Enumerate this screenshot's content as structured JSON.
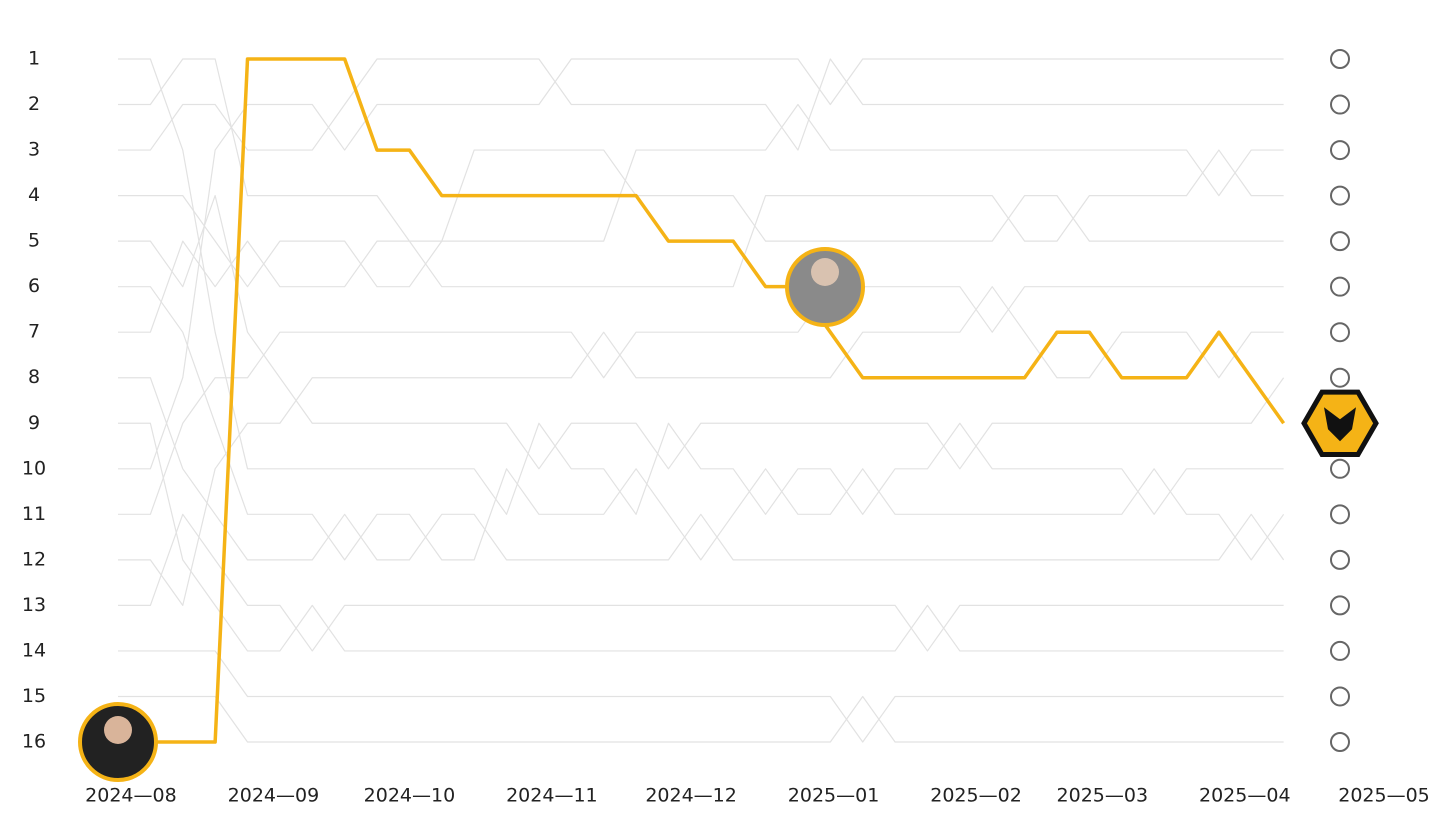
{
  "chart_data": {
    "type": "bump",
    "x": [
      0,
      1,
      2,
      3,
      4,
      5,
      6,
      7,
      8,
      9,
      10,
      11,
      12,
      13,
      14,
      15,
      16,
      17,
      18,
      19,
      20,
      21,
      22,
      23,
      24,
      25,
      26,
      27,
      28,
      29,
      30,
      31,
      32,
      33,
      34,
      35,
      36
    ],
    "xlim": [
      0,
      39.1
    ],
    "xticks": [
      {
        "value": 0.4,
        "label": "2024—08"
      },
      {
        "value": 4.8,
        "label": "2024—09"
      },
      {
        "value": 9,
        "label": "2024—10"
      },
      {
        "value": 13.4,
        "label": "2024—11"
      },
      {
        "value": 17.7,
        "label": "2024—12"
      },
      {
        "value": 22.1,
        "label": "2025—01"
      },
      {
        "value": 26.5,
        "label": "2025—02"
      },
      {
        "value": 30.4,
        "label": "2025—03"
      },
      {
        "value": 34.8,
        "label": "2025—04"
      },
      {
        "value": 39.1,
        "label": "2025—05"
      }
    ],
    "ylim": [
      1,
      16
    ],
    "y_inverted": true,
    "yticks": [
      1,
      2,
      3,
      4,
      5,
      6,
      7,
      8,
      9,
      10,
      11,
      12,
      13,
      14,
      15,
      16
    ],
    "grid": false,
    "series": [
      {
        "color": "#e2e2e2",
        "values": [
          10,
          10,
          8,
          3,
          2,
          2,
          2,
          3,
          2,
          2,
          2,
          2,
          2,
          2,
          1,
          1,
          1,
          1,
          1,
          1,
          1,
          1,
          2,
          1,
          1,
          1,
          1,
          1,
          1,
          1,
          1,
          1,
          1,
          1,
          1,
          1,
          1
        ]
      },
      {
        "color": "#e2e2e2",
        "values": [
          3,
          3,
          2,
          2,
          3,
          3,
          3,
          2,
          1,
          1,
          1,
          1,
          1,
          1,
          2,
          2,
          2,
          2,
          2,
          2,
          2,
          3,
          1,
          2,
          2,
          2,
          2,
          2,
          2,
          2,
          2,
          2,
          2,
          2,
          2,
          2,
          2
        ]
      },
      {
        "color": "#e2e2e2",
        "values": [
          2,
          2,
          1,
          1,
          4,
          4,
          4,
          4,
          4,
          5,
          5,
          5,
          5,
          5,
          5,
          5,
          3,
          3,
          3,
          3,
          3,
          2,
          3,
          3,
          3,
          3,
          3,
          3,
          3,
          3,
          3,
          3,
          3,
          3,
          4,
          3,
          3
        ]
      },
      {
        "color": "#e2e2e2",
        "values": [
          7,
          7,
          5,
          6,
          5,
          6,
          6,
          6,
          5,
          5,
          6,
          6,
          6,
          6,
          6,
          6,
          6,
          6,
          6,
          6,
          4,
          4,
          4,
          4,
          4,
          4,
          4,
          4,
          5,
          5,
          4,
          4,
          4,
          4,
          3,
          4,
          4
        ]
      },
      {
        "color": "#e2e2e2",
        "values": [
          4,
          4,
          4,
          5,
          6,
          5,
          5,
          5,
          6,
          6,
          5,
          3,
          3,
          3,
          3,
          3,
          4,
          4,
          4,
          4,
          5,
          5,
          5,
          5,
          5,
          5,
          5,
          5,
          4,
          4,
          5,
          5,
          5,
          5,
          5,
          5,
          5
        ]
      },
      {
        "color": "#e2e2e2",
        "values": [
          11,
          11,
          9,
          8,
          8,
          7,
          7,
          7,
          7,
          7,
          7,
          7,
          7,
          7,
          7,
          8,
          7,
          7,
          7,
          7,
          7,
          7,
          6,
          6,
          6,
          6,
          6,
          7,
          6,
          6,
          6,
          6,
          6,
          6,
          6,
          6,
          6
        ]
      },
      {
        "color": "#e2e2e2",
        "values": [
          12,
          12,
          13,
          10,
          9,
          9,
          8,
          8,
          8,
          8,
          8,
          8,
          8,
          8,
          8,
          7,
          8,
          8,
          8,
          8,
          8,
          8,
          8,
          7,
          7,
          7,
          7,
          6,
          7,
          8,
          8,
          7,
          7,
          7,
          8,
          7,
          7
        ]
      },
      {
        "color": "#e2e2e2",
        "values": [
          5,
          5,
          6,
          4,
          7,
          8,
          9,
          9,
          9,
          9,
          9,
          9,
          9,
          10,
          9,
          9,
          9,
          10,
          9,
          9,
          9,
          9,
          9,
          9,
          9,
          9,
          10,
          9,
          9,
          9,
          9,
          9,
          9,
          9,
          9,
          9,
          8
        ]
      },
      {
        "color": "#e2e2e2",
        "values": [
          1,
          1,
          3,
          7,
          10,
          10,
          10,
          10,
          10,
          10,
          10,
          10,
          11,
          9,
          10,
          10,
          11,
          9,
          10,
          10,
          11,
          10,
          10,
          11,
          10,
          10,
          9,
          10,
          10,
          10,
          10,
          10,
          11,
          10,
          10,
          10,
          10
        ]
      },
      {
        "color": "#e2e2e2",
        "values": [
          6,
          6,
          7,
          9,
          11,
          11,
          11,
          12,
          11,
          11,
          12,
          12,
          10,
          11,
          11,
          11,
          10,
          11,
          12,
          11,
          10,
          11,
          11,
          10,
          11,
          11,
          11,
          11,
          11,
          11,
          11,
          11,
          10,
          11,
          11,
          12,
          11
        ]
      },
      {
        "color": "#e2e2e2",
        "values": [
          8,
          8,
          10,
          11,
          12,
          12,
          12,
          11,
          12,
          12,
          11,
          11,
          12,
          12,
          12,
          12,
          12,
          12,
          11,
          12,
          12,
          12,
          12,
          12,
          12,
          12,
          12,
          12,
          12,
          12,
          12,
          12,
          12,
          12,
          12,
          11,
          12
        ]
      },
      {
        "color": "#e2e2e2",
        "values": [
          13,
          13,
          11,
          12,
          13,
          13,
          14,
          13,
          13,
          13,
          13,
          13,
          13,
          13,
          13,
          13,
          13,
          13,
          13,
          13,
          13,
          13,
          13,
          13,
          13,
          14,
          13,
          13,
          13,
          13,
          13,
          13,
          13,
          13,
          13,
          13,
          13
        ]
      },
      {
        "color": "#e2e2e2",
        "values": [
          9,
          9,
          12,
          13,
          14,
          14,
          13,
          14,
          14,
          14,
          14,
          14,
          14,
          14,
          14,
          14,
          14,
          14,
          14,
          14,
          14,
          14,
          14,
          14,
          14,
          13,
          14,
          14,
          14,
          14,
          14,
          14,
          14,
          14,
          14,
          14,
          14
        ]
      },
      {
        "color": "#e2e2e2",
        "values": [
          14,
          14,
          14,
          14,
          15,
          15,
          15,
          15,
          15,
          15,
          15,
          15,
          15,
          15,
          15,
          15,
          15,
          15,
          15,
          15,
          15,
          15,
          15,
          16,
          15,
          15,
          15,
          15,
          15,
          15,
          15,
          15,
          15,
          15,
          15,
          15,
          15
        ]
      },
      {
        "color": "#e2e2e2",
        "values": [
          15,
          15,
          15,
          15,
          16,
          16,
          16,
          16,
          16,
          16,
          16,
          16,
          16,
          16,
          16,
          16,
          16,
          16,
          16,
          16,
          16,
          16,
          16,
          15,
          16,
          16,
          16,
          16,
          16,
          16,
          16,
          16,
          16,
          16,
          16,
          16,
          16
        ]
      },
      {
        "color": "#f5b316",
        "highlight": true,
        "values": [
          16,
          16,
          16,
          16,
          1,
          1,
          1,
          1,
          3,
          3,
          4,
          4,
          4,
          4,
          4,
          4,
          4,
          5,
          5,
          5,
          6,
          6,
          7,
          8,
          8,
          8,
          8,
          8,
          8,
          7,
          7,
          8,
          8,
          8,
          7,
          8,
          9
        ]
      }
    ]
  }
}
